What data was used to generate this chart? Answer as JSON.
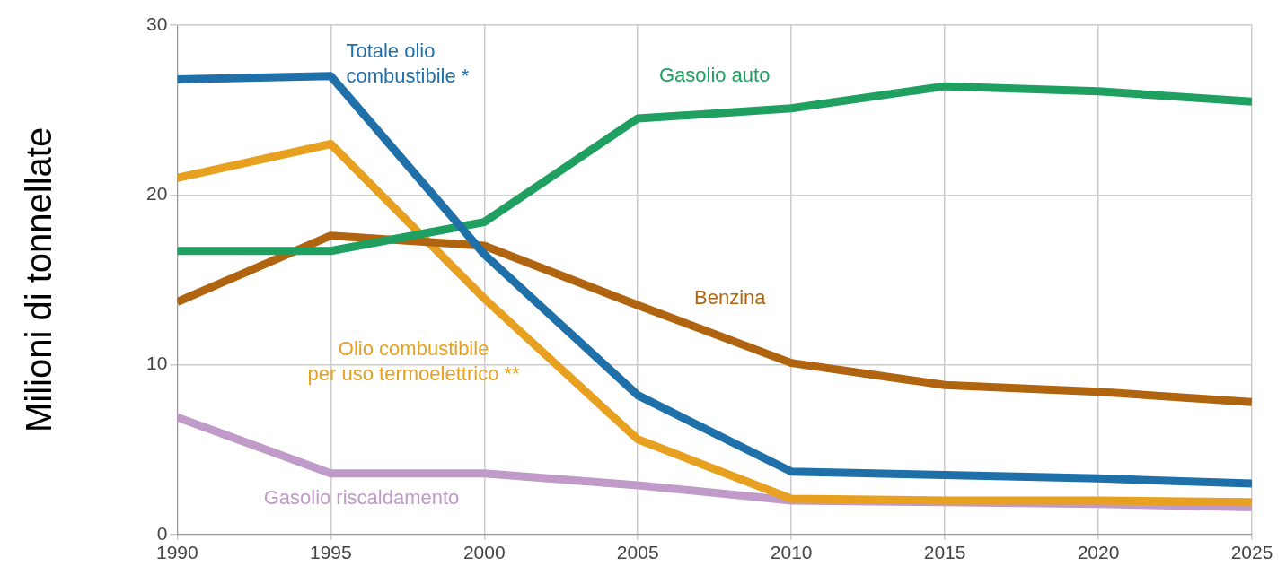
{
  "chart_data": {
    "type": "line",
    "ylabel": "Milioni di tonnellate",
    "x": [
      1990,
      1995,
      2000,
      2005,
      2010,
      2015,
      2020,
      2025
    ],
    "xlim": [
      1990,
      2025
    ],
    "xticks": [
      1990,
      1995,
      2000,
      2005,
      2010,
      2015,
      2020,
      2025
    ],
    "ylim": [
      0,
      30
    ],
    "yticks": [
      0,
      10,
      20,
      30
    ],
    "grid": true,
    "legend": false,
    "marker": "none",
    "line_style": "solid",
    "series": [
      {
        "name": "Totale olio\ncombustibile *",
        "color": "#1f6fa8",
        "values": [
          26.8,
          27.0,
          16.5,
          8.2,
          3.7,
          3.5,
          3.3,
          3.0
        ]
      },
      {
        "name": "Gasolio auto",
        "color": "#1fa060",
        "values": [
          16.7,
          16.7,
          18.4,
          24.5,
          25.1,
          26.4,
          26.1,
          25.5
        ]
      },
      {
        "name": "Benzina",
        "color": "#b0640f",
        "values": [
          13.7,
          17.6,
          17.0,
          13.5,
          10.1,
          8.8,
          8.4,
          7.8
        ]
      },
      {
        "name": "Olio combustibile\nper uso termoelettrico **",
        "color": "#e8a020",
        "values": [
          21.0,
          23.0,
          13.9,
          5.6,
          2.1,
          2.0,
          2.0,
          1.9
        ]
      },
      {
        "name": "Gasolio riscaldamento",
        "color": "#c09ac8",
        "values": [
          6.9,
          3.6,
          3.6,
          2.9,
          2.0,
          1.9,
          1.8,
          1.6
        ]
      }
    ]
  }
}
